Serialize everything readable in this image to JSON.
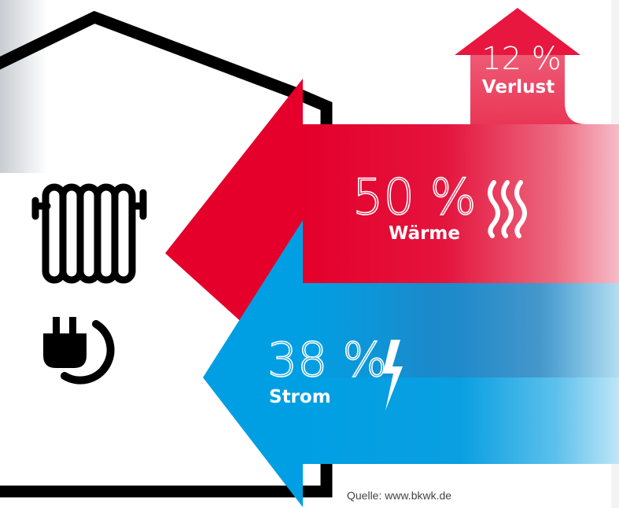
{
  "loss": {
    "percent": "12 %",
    "label": "Verlust",
    "value": 12
  },
  "heat": {
    "percent": "50 %",
    "label": "Wärme",
    "value": 50
  },
  "power": {
    "percent": "38 %",
    "label": "Strom",
    "value": 38
  },
  "source": "Quelle: www.bkwk.de",
  "icons": {
    "house": "house-outline-icon",
    "radiator": "radiator-icon",
    "plug": "power-plug-icon",
    "heat_waves": "heat-waves-icon",
    "lightning": "lightning-icon"
  },
  "colors": {
    "red": "#e4002b",
    "blue": "#009fe3",
    "outline": "#000000"
  }
}
